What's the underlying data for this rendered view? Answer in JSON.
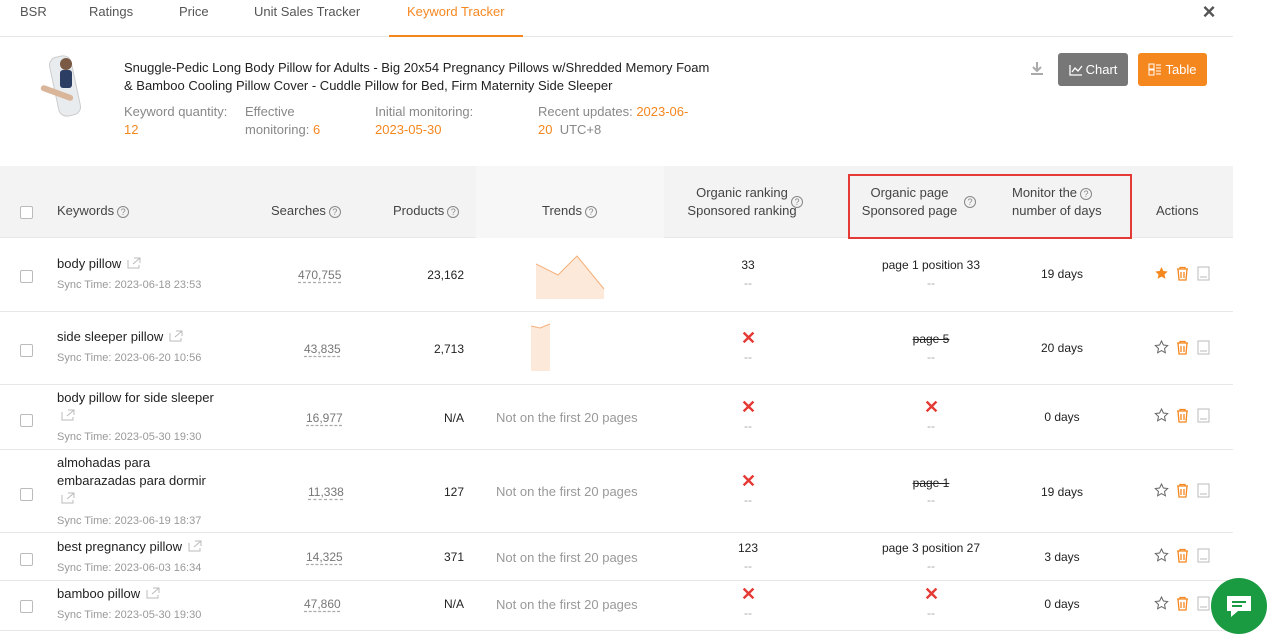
{
  "tabs": [
    {
      "label": "BSR"
    },
    {
      "label": "Ratings"
    },
    {
      "label": "Price"
    },
    {
      "label": "Unit Sales Tracker"
    },
    {
      "label": "Keyword Tracker"
    }
  ],
  "product": {
    "title": "Snuggle-Pedic Long Body Pillow for Adults - Big 20x54 Pregnancy Pillows w/Shredded Memory Foam & Bamboo Cooling Pillow Cover - Cuddle Pillow for Bed, Firm Maternity Side Sleeper",
    "keyword_quantity_label": "Keyword quantity:",
    "keyword_quantity": "12",
    "effective_label": "Effective monitoring:",
    "effective_value": "6",
    "initial_label": "Initial monitoring:",
    "initial_value": "2023-05-30",
    "recent_label": "Recent updates:",
    "recent_value_a": "2023-06-",
    "recent_value_b": "20",
    "recent_tz": "UTC+8"
  },
  "buttons": {
    "chart": "Chart",
    "table": "Table"
  },
  "headers": {
    "keywords": "Keywords",
    "searches": "Searches",
    "products": "Products",
    "trends": "Trends",
    "organic_ranking": "Organic ranking",
    "sponsored_ranking": "Sponsored ranking",
    "organic_page": "Organic page",
    "sponsored_page": "Sponsored page",
    "monitor_a": "Monitor the",
    "monitor_b": "number of days",
    "actions": "Actions"
  },
  "rows": [
    {
      "keyword": "body pillow",
      "sync": "Sync Time: 2023-06-18 23:53",
      "searches": "470,755",
      "products": "23,162",
      "organic_rank": "33",
      "sponsored_rank": "--",
      "organic_page": "page 1 position 33",
      "sponsored_page": "--",
      "days": "19 days",
      "starred": true
    },
    {
      "keyword": "side sleeper pillow",
      "sync": "Sync Time: 2023-06-20 10:56",
      "searches": "43,835",
      "products": "2,713",
      "organic_rank": "",
      "sponsored_rank": "--",
      "organic_page": "page 5",
      "sponsored_page": "--",
      "days": "20 days",
      "starred": false
    },
    {
      "keyword": "body pillow for side sleeper",
      "sync": "Sync Time: 2023-05-30 19:30",
      "searches": "16,977",
      "products": "N/A",
      "trend_text": "Not on the first 20 pages",
      "sponsored_rank": "--",
      "sponsored_page": "--",
      "days": "0 days",
      "starred": false
    },
    {
      "keyword_a": "almohadas para",
      "keyword_b": "embarazadas para dormir",
      "sync": "Sync Time: 2023-06-19 18:37",
      "searches": "11,338",
      "products": "127",
      "trend_text": "Not on the first 20 pages",
      "sponsored_rank": "--",
      "organic_page": "page 1",
      "sponsored_page": "--",
      "days": "19 days",
      "starred": false
    },
    {
      "keyword": "best pregnancy pillow",
      "sync": "Sync Time: 2023-06-03 16:34",
      "searches": "14,325",
      "products": "371",
      "trend_text": "Not on the first 20 pages",
      "organic_rank": "123",
      "sponsored_rank": "--",
      "organic_page": "page 3 position 27",
      "sponsored_page": "--",
      "days": "3 days",
      "starred": false
    },
    {
      "keyword": "bamboo pillow",
      "sync": "Sync Time: 2023-05-30 19:30",
      "searches": "47,860",
      "products": "N/A",
      "trend_text": "Not on the first 20 pages",
      "sponsored_rank": "--",
      "sponsored_page": "--",
      "days": "0 days",
      "starred": false
    }
  ],
  "colors": {
    "accent": "#f5871f",
    "highlight": "#e53935",
    "chat": "#1a9b41"
  }
}
